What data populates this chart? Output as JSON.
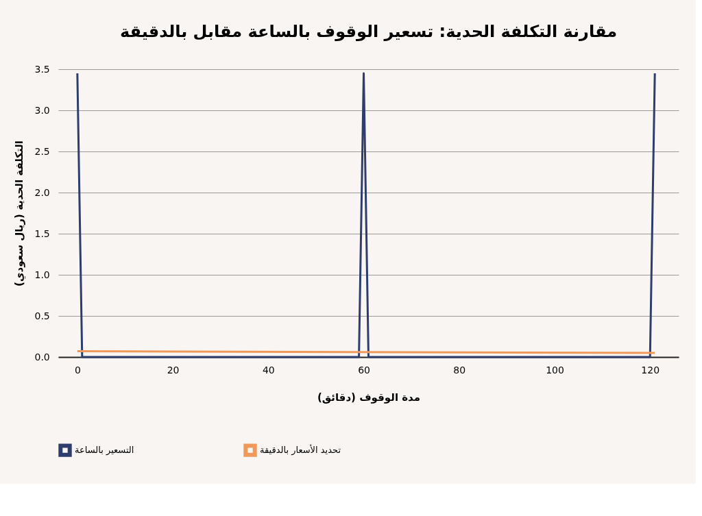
{
  "chart_data": {
    "type": "line",
    "title": "مقارنة التكلفة الحدية: تسعير الوقوف بالساعة مقابل بالدقيقة",
    "xlabel": "مدة الوقوف (دقائق)",
    "ylabel": "التكلفة الحدية (ريال سعودي)",
    "series": [
      {
        "name": "التسعير بالساعة",
        "color": "#2e3d6b",
        "x": [
          0,
          1,
          59,
          60,
          61,
          120,
          121
        ],
        "values": [
          3.45,
          0,
          0,
          3.45,
          0,
          0,
          3.45
        ]
      },
      {
        "name": "تحديد الأسعار بالدقيقة",
        "color": "#ef9a5a",
        "x": [
          0,
          121
        ],
        "values": [
          0.07,
          0.05
        ]
      }
    ],
    "xlim": [
      -4,
      126
    ],
    "xticks": [
      0,
      20,
      40,
      60,
      80,
      100,
      120
    ],
    "ylim": [
      0,
      3.5
    ],
    "yticks": [
      {
        "value": 0,
        "label": "0.0"
      },
      {
        "value": 0.5,
        "label": "0.5"
      },
      {
        "value": 1,
        "label": "1.0"
      },
      {
        "value": 1.5,
        "label": "1.5"
      },
      {
        "value": 2,
        "label": "2.0"
      },
      {
        "value": 2.5,
        "label": "2.5"
      },
      {
        "value": 3,
        "label": "3.0"
      },
      {
        "value": 3.5,
        "label": "3.5"
      }
    ],
    "grid": "y",
    "legend": "bottom",
    "marker": "none",
    "line_style": "solid"
  }
}
